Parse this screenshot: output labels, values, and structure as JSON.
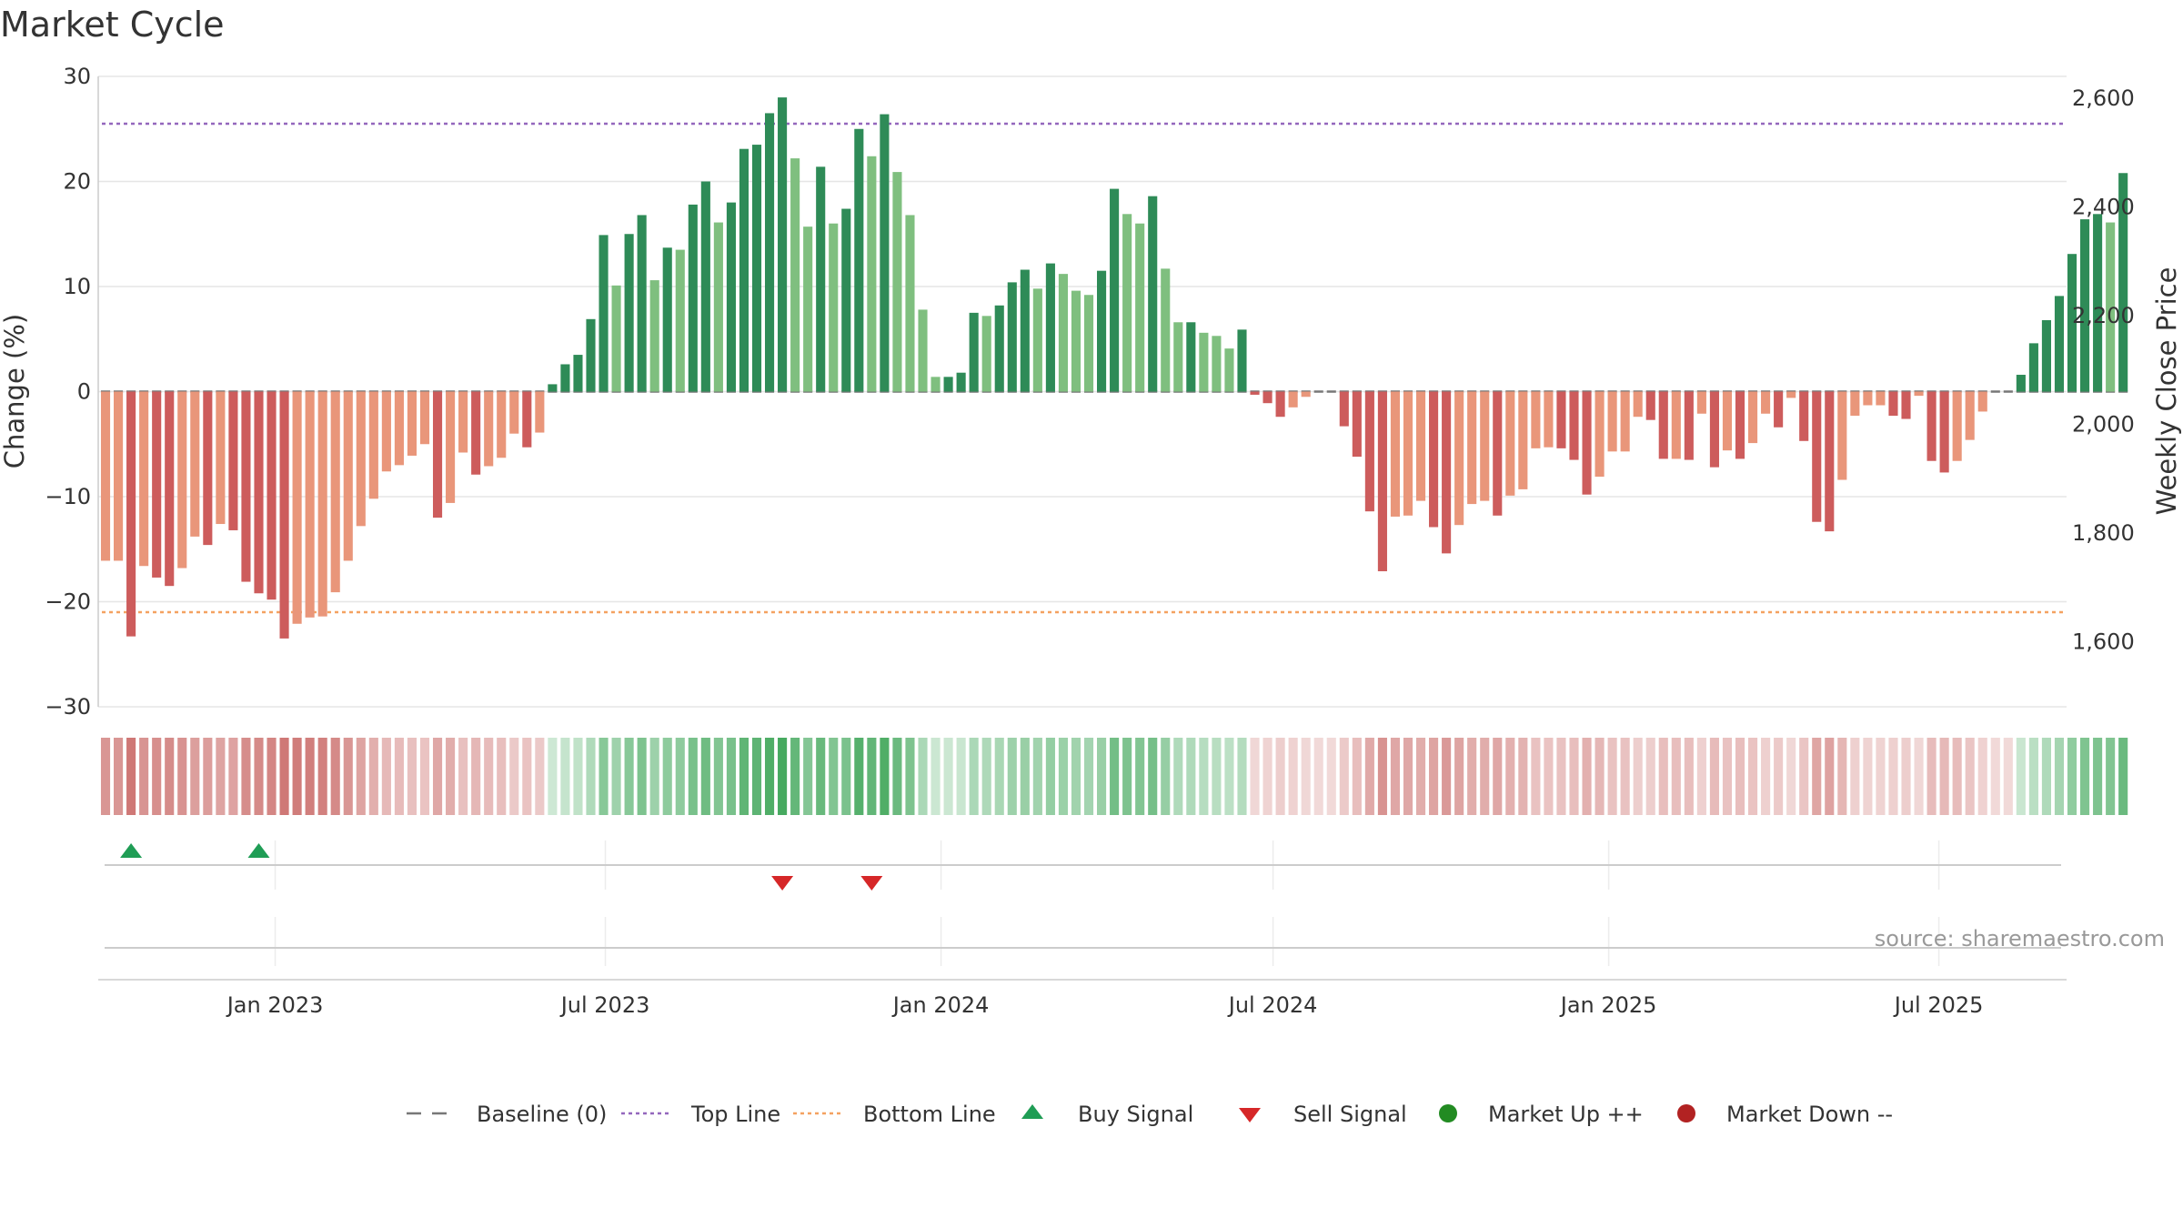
{
  "chart_data": {
    "type": "bar",
    "title": "Market Cycle",
    "ylabel": "Change (%)",
    "y2label": "Weekly Close Price",
    "ylim": [
      -30,
      30
    ],
    "y2lim": [
      1480,
      2640
    ],
    "yticks": [
      {
        "v": 30,
        "label": "30"
      },
      {
        "v": 20,
        "label": "20"
      },
      {
        "v": 10,
        "label": "10"
      },
      {
        "v": 0,
        "label": "0"
      },
      {
        "v": -10,
        "label": "−10"
      },
      {
        "v": -20,
        "label": "−20"
      },
      {
        "v": -30,
        "label": "−30"
      }
    ],
    "y2ticks": [
      {
        "v": 2600,
        "label": "2,600"
      },
      {
        "v": 2400,
        "label": "2,400"
      },
      {
        "v": 2200,
        "label": "2,200"
      },
      {
        "v": 2000,
        "label": "2,000"
      },
      {
        "v": 1800,
        "label": "1,800"
      },
      {
        "v": 1600,
        "label": "1,600"
      }
    ],
    "x_start": "2022-09-26",
    "x_end": "2025-09-09",
    "xticks": [
      {
        "date": "2023-01-01",
        "label": "Jan 2023"
      },
      {
        "date": "2023-07-01",
        "label": "Jul 2023"
      },
      {
        "date": "2024-01-01",
        "label": "Jan 2024"
      },
      {
        "date": "2024-07-01",
        "label": "Jul 2024"
      },
      {
        "date": "2025-01-01",
        "label": "Jan 2025"
      },
      {
        "date": "2025-07-01",
        "label": "Jul 2025"
      }
    ],
    "first_week": "2022-09-30",
    "values": [
      -16.1,
      -16.1,
      -23.3,
      -16.6,
      -17.7,
      -18.5,
      -16.8,
      -13.8,
      -14.6,
      -12.6,
      -13.2,
      -18.1,
      -19.2,
      -19.8,
      -23.5,
      -22.1,
      -21.5,
      -21.4,
      -19.1,
      -16.1,
      -12.8,
      -10.2,
      -7.6,
      -7.0,
      -6.1,
      -5.0,
      -12.0,
      -10.6,
      -5.8,
      -7.9,
      -7.1,
      -6.3,
      -4.0,
      -5.3,
      -3.9,
      0.7,
      2.6,
      3.5,
      6.9,
      14.9,
      10.1,
      15.0,
      16.8,
      10.6,
      13.7,
      13.5,
      17.8,
      20.0,
      16.1,
      18.0,
      23.1,
      23.5,
      26.5,
      28.0,
      22.2,
      15.7,
      21.4,
      16.0,
      17.4,
      25.0,
      22.4,
      26.4,
      20.9,
      16.8,
      7.8,
      1.4,
      1.4,
      1.8,
      7.5,
      7.2,
      8.2,
      10.4,
      11.6,
      9.8,
      12.2,
      11.2,
      9.6,
      9.2,
      11.5,
      19.3,
      16.9,
      16.0,
      18.6,
      11.7,
      6.6,
      6.6,
      5.6,
      5.3,
      4.1,
      5.9,
      -0.3,
      -1.1,
      -2.4,
      -1.5,
      -0.5,
      0,
      0,
      -3.3,
      -6.2,
      -11.4,
      -17.1,
      -11.9,
      -11.8,
      -10.4,
      -12.9,
      -15.4,
      -12.7,
      -10.7,
      -10.4,
      -11.8,
      -9.9,
      -9.3,
      -5.4,
      -5.3,
      -5.4,
      -6.5,
      -9.8,
      -8.1,
      -5.7,
      -5.7,
      -2.4,
      -2.7,
      -6.4,
      -6.4,
      -6.5,
      -2.1,
      -7.2,
      -5.6,
      -6.4,
      -4.9,
      -2.1,
      -3.4,
      -0.6,
      -4.7,
      -12.4,
      -13.3,
      -8.4,
      -2.3,
      -1.3,
      -1.3,
      -2.3,
      -2.6,
      -0.4,
      -6.6,
      -7.7,
      -6.6,
      -4.6,
      -1.9,
      0,
      0,
      1.6,
      4.6,
      6.8,
      9.1,
      13.1,
      16.4,
      16.9,
      16.1,
      20.8
    ],
    "reference_lines": [
      {
        "name": "Top Line",
        "value": 25.5,
        "color": "#9467bd"
      },
      {
        "name": "Bottom Line",
        "value": -21,
        "color": "#f4a261"
      }
    ],
    "buy_signals": [
      "2022-10-14",
      "2022-12-23"
    ],
    "sell_signals": [
      "2023-10-06",
      "2023-11-24"
    ],
    "legend": [
      {
        "label": "Baseline (0)",
        "symbol": "dash",
        "color": "#777777"
      },
      {
        "label": "Top Line",
        "symbol": "dot",
        "color": "#9467bd"
      },
      {
        "label": "Bottom Line",
        "symbol": "dot",
        "color": "#f4a261"
      },
      {
        "label": "Buy Signal",
        "symbol": "triangle-up",
        "color": "#1f9d55"
      },
      {
        "label": "Sell Signal",
        "symbol": "triangle-down",
        "color": "#d62728"
      },
      {
        "label": "Market Up ++",
        "symbol": "circle",
        "color": "#228b22"
      },
      {
        "label": "Market Down --",
        "symbol": "circle",
        "color": "#b22222"
      }
    ],
    "legend_position": "bottom-center",
    "grid": true,
    "source": "source: sharemaestro.com",
    "colors": {
      "strong_up": "#2e8b57",
      "weak_up": "#7fbf7f",
      "strong_down": "#cd5c5c",
      "weak_down": "#e9967a"
    }
  }
}
